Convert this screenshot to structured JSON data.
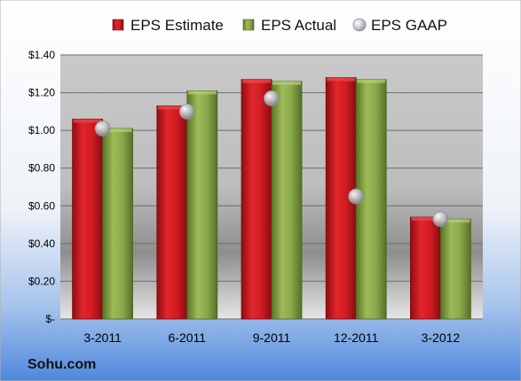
{
  "chart_data": {
    "type": "bar",
    "categories": [
      "3-2011",
      "6-2011",
      "9-2011",
      "12-2011",
      "3-2012"
    ],
    "series": [
      {
        "name": "EPS Estimate",
        "kind": "bar",
        "color": "#c0161d",
        "values": [
          1.06,
          1.13,
          1.27,
          1.28,
          0.54
        ]
      },
      {
        "name": "EPS Actual",
        "kind": "bar",
        "color": "#7e9c3c",
        "values": [
          1.01,
          1.21,
          1.26,
          1.27,
          0.53
        ]
      },
      {
        "name": "EPS GAAP",
        "kind": "marker",
        "color": "#b9bec4",
        "values": [
          1.01,
          1.1,
          1.17,
          0.65,
          0.53
        ]
      }
    ],
    "yticks": [
      "$-",
      "$0.20",
      "$0.40",
      "$0.60",
      "$0.80",
      "$1.00",
      "$1.20",
      "$1.40"
    ],
    "ylim": [
      0,
      1.4
    ],
    "ystep": 0.2,
    "grid": true,
    "legend": "top",
    "source": "Sohu.com"
  }
}
